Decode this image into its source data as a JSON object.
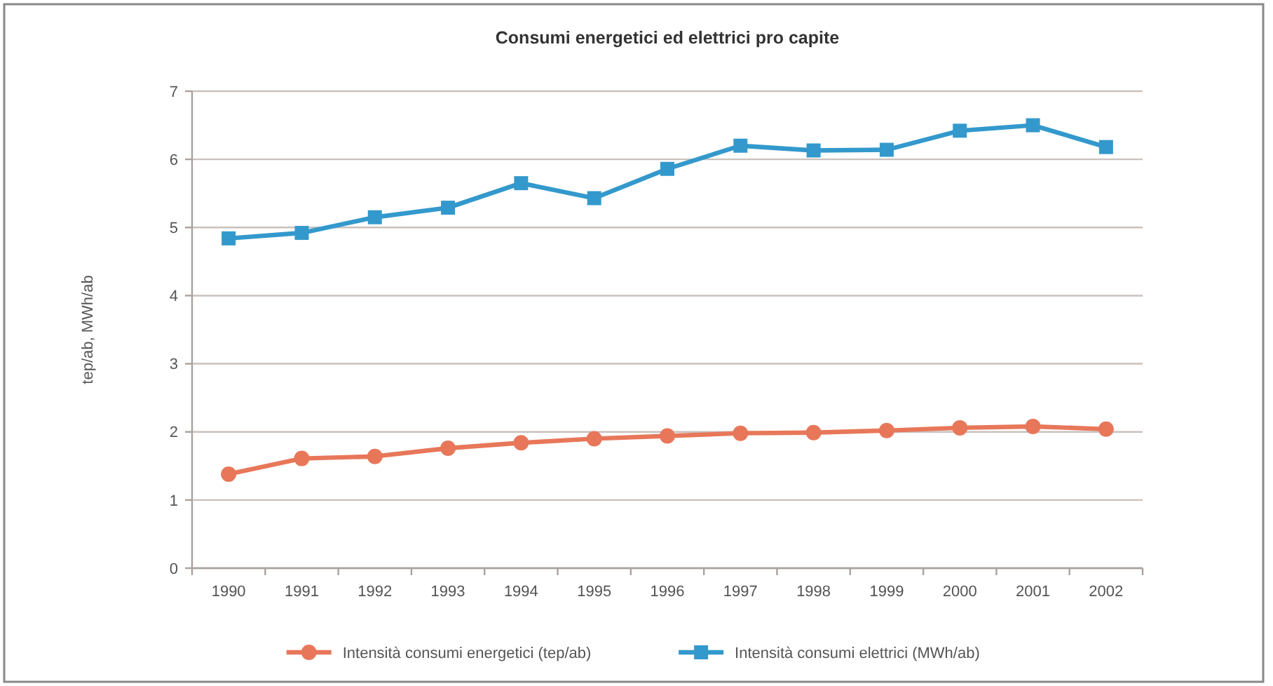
{
  "chart_data": {
    "type": "line",
    "title": "Consumi energetici ed elettrici pro capite",
    "ylabel": "tep/ab, MWh/ab",
    "categories": [
      "1990",
      "1991",
      "1992",
      "1993",
      "1994",
      "1995",
      "1996",
      "1997",
      "1998",
      "1999",
      "2000",
      "2001",
      "2002"
    ],
    "series": [
      {
        "name": "Intensità consumi energetici (tep/ab)",
        "color": "#e8775a",
        "marker": "circle",
        "values": [
          1.38,
          1.61,
          1.64,
          1.76,
          1.84,
          1.9,
          1.94,
          1.98,
          1.99,
          2.02,
          2.06,
          2.08,
          2.04
        ]
      },
      {
        "name": "Intensità consumi elettrici (MWh/ab)",
        "color": "#3399cc",
        "marker": "square",
        "values": [
          4.84,
          4.92,
          5.15,
          5.29,
          5.65,
          5.43,
          5.86,
          6.2,
          6.13,
          6.14,
          6.42,
          6.5,
          6.18
        ]
      }
    ],
    "ylim": [
      0,
      7
    ],
    "yticks": [
      0,
      1,
      2,
      3,
      4,
      5,
      6,
      7
    ],
    "grid": "y",
    "legend": "bottom",
    "line_style": "solid"
  }
}
